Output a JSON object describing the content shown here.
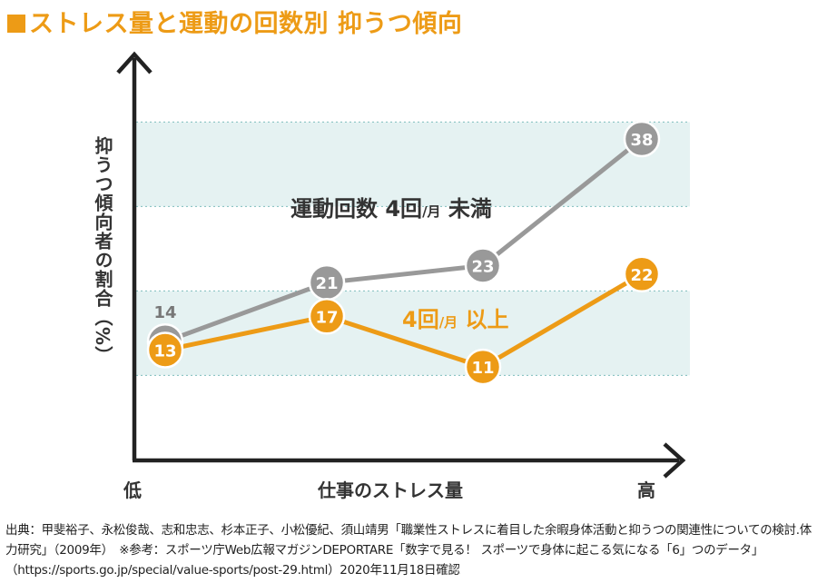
{
  "title": "ストレス量と運動の回数別 抑うつ傾向",
  "chart_data": {
    "type": "line",
    "title": "ストレス量と運動の回数別 抑うつ傾向",
    "ylabel": "抑うつ傾向者の割合（%）",
    "xlabel": "仕事のストレス量",
    "x_low_label": "低",
    "x_high_label": "高",
    "x": [
      1,
      2,
      3,
      4
    ],
    "ylim": [
      5,
      42
    ],
    "series": [
      {
        "name": "運動回数 4回/月 未満",
        "label_main": "運動回数 4回",
        "label_unit": "/月",
        "label_end": " 未満",
        "color": "#999999",
        "values": [
          14,
          21,
          23,
          38
        ],
        "value_labels": [
          "14",
          "21",
          "23",
          "38"
        ]
      },
      {
        "name": "4回/月 以上",
        "label_main": "4回",
        "label_unit": "/月",
        "label_end": " 以上",
        "color": "#ed9b16",
        "values": [
          13,
          17,
          11,
          22
        ],
        "value_labels": [
          "13",
          "17",
          "11",
          "22"
        ]
      }
    ],
    "bands": [
      [
        30,
        40
      ],
      [
        10,
        20
      ]
    ],
    "band_color": "#e5f2f2"
  },
  "source_text": "出典：甲斐裕子、永松俊哉、志和忠志、杉本正子、小松優紀、須山靖男「職業性ストレスに着目した余暇身体活動と抑うつの関連性についての検討.体力研究」（2009年）　※参考：スポーツ庁Web広報マガジンDEPORTARE「数字で見る！ スポーツで身体に起こる気になる「6」つのデータ」（https://sports.go.jp/special/value-sports/post-29.html）2020年11月18日確認"
}
